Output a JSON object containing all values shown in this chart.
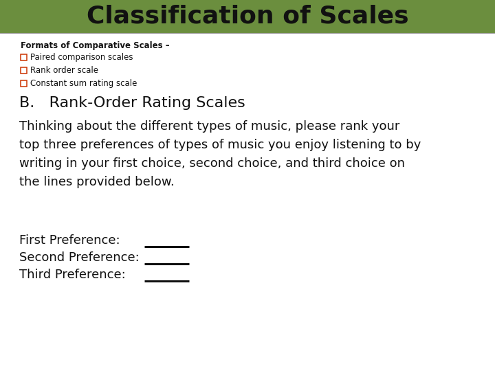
{
  "title": "Classification of Scales",
  "title_bg_color": "#6b8e3e",
  "title_text_color": "#111111",
  "title_fontsize": 26,
  "bg_color": "#ffffff",
  "header_label": "Formats of Comparative Scales –",
  "bullet_items": [
    "Paired comparison scales",
    "Rank order scale",
    "Constant sum rating scale"
  ],
  "section_heading": "B.   Rank-Order Rating Scales",
  "body_text": "Thinking about the different types of music, please rank your\ntop three preferences of types of music you enjoy listening to by\nwriting in your first choice, second choice, and third choice on\nthe lines provided below.",
  "preference_labels": [
    "First Preference:",
    "Second Preference:",
    "Third Preference:"
  ],
  "checkbox_color": "#cc3300",
  "text_color": "#111111",
  "line_color": "#111111",
  "header_fontsize": 8.5,
  "bullet_fontsize": 8.5,
  "section_fontsize": 16,
  "body_fontsize": 13,
  "pref_fontsize": 13
}
